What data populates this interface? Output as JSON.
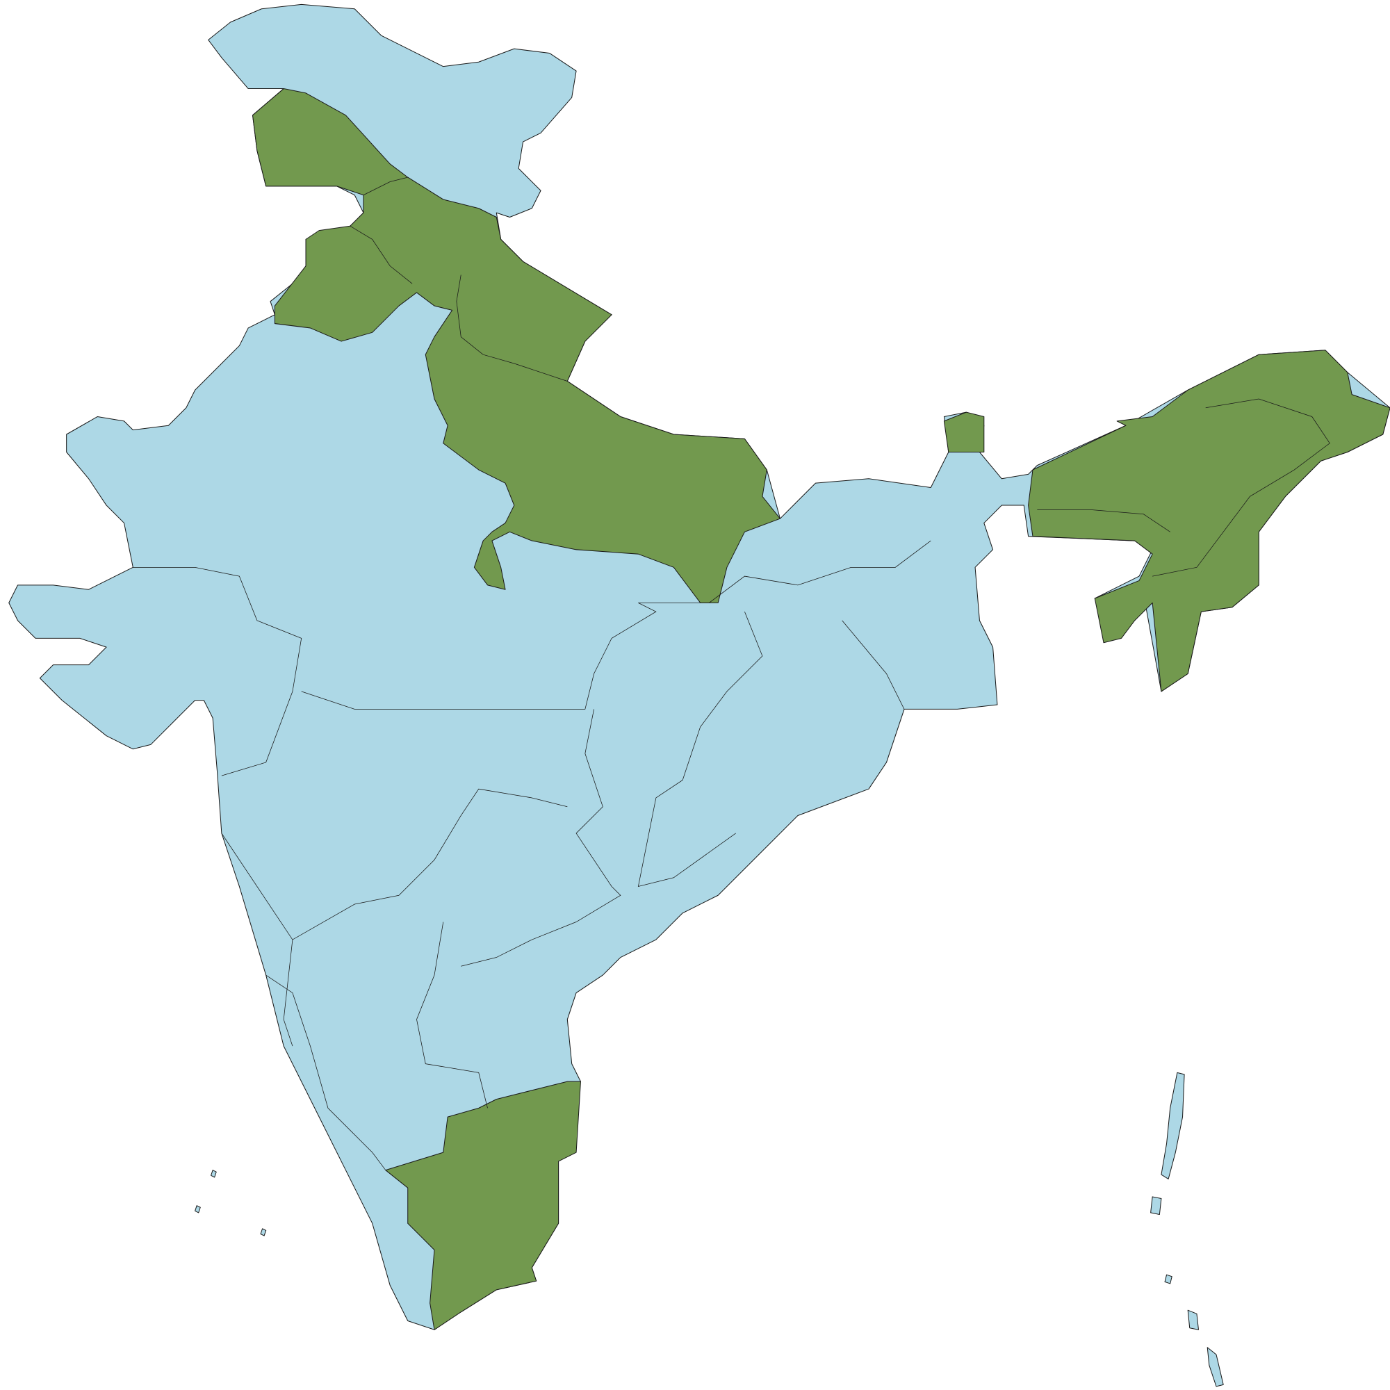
{
  "map": {
    "land_color": "#add8e6",
    "highlight_color": "#72994e",
    "border_color": "#1a1a1a"
  }
}
